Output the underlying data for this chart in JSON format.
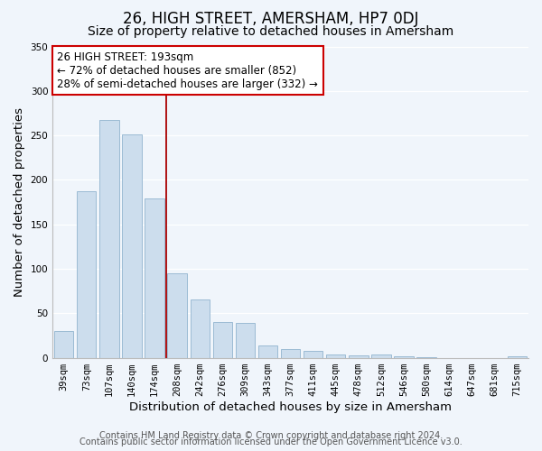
{
  "title": "26, HIGH STREET, AMERSHAM, HP7 0DJ",
  "subtitle": "Size of property relative to detached houses in Amersham",
  "xlabel": "Distribution of detached houses by size in Amersham",
  "ylabel": "Number of detached properties",
  "bar_labels": [
    "39sqm",
    "73sqm",
    "107sqm",
    "140sqm",
    "174sqm",
    "208sqm",
    "242sqm",
    "276sqm",
    "309sqm",
    "343sqm",
    "377sqm",
    "411sqm",
    "445sqm",
    "478sqm",
    "512sqm",
    "546sqm",
    "580sqm",
    "614sqm",
    "647sqm",
    "681sqm",
    "715sqm"
  ],
  "bar_values": [
    30,
    187,
    267,
    251,
    179,
    95,
    65,
    40,
    39,
    14,
    10,
    8,
    4,
    3,
    4,
    2,
    1,
    0,
    0,
    0,
    2
  ],
  "bar_color": "#ccdded",
  "bar_edge_color": "#9bbbd4",
  "vline_color": "#aa0000",
  "annotation_text": "26 HIGH STREET: 193sqm\n← 72% of detached houses are smaller (852)\n28% of semi-detached houses are larger (332) →",
  "annotation_box_facecolor": "#ffffff",
  "annotation_box_edgecolor": "#cc0000",
  "ylim": [
    0,
    350
  ],
  "yticks": [
    0,
    50,
    100,
    150,
    200,
    250,
    300,
    350
  ],
  "footer1": "Contains HM Land Registry data © Crown copyright and database right 2024.",
  "footer2": "Contains public sector information licensed under the Open Government Licence v3.0.",
  "bg_color": "#f0f5fb",
  "grid_color": "#d8e4f0",
  "title_fontsize": 12,
  "subtitle_fontsize": 10,
  "axis_label_fontsize": 9.5,
  "tick_fontsize": 7.5,
  "footer_fontsize": 7
}
